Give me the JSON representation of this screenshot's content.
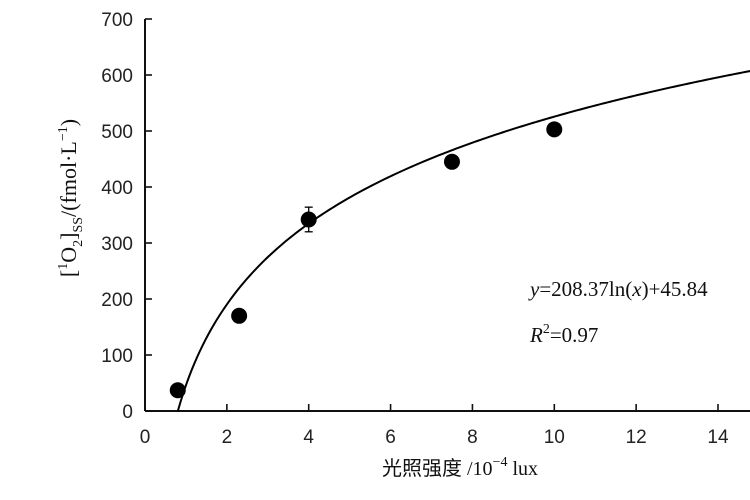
{
  "chart_data": {
    "type": "scatter",
    "xlabel_cjk": "光照强度",
    "xlabel_unit": " /10",
    "xlabel_exp": "−4",
    "xlabel_tail": " lux",
    "ylabel": {
      "open": "[",
      "sup1": "1",
      "o": "O",
      "sub2": "2",
      "close": "]",
      "ss": "SS",
      "rest": "/(fmol·L",
      "supminus": "−1",
      "end": ")"
    },
    "xlim": [
      0,
      15.5
    ],
    "ylim": [
      0,
      700
    ],
    "xticks": [
      "0",
      "2",
      "4",
      "6",
      "8",
      "10",
      "12",
      "14"
    ],
    "xtick_values": [
      0,
      2,
      4,
      6,
      8,
      10,
      12,
      14
    ],
    "yticks": [
      "0",
      "100",
      "200",
      "300",
      "400",
      "500",
      "600",
      "700"
    ],
    "ytick_values": [
      0,
      100,
      200,
      300,
      400,
      500,
      600,
      700
    ],
    "points": [
      {
        "x": 0.8,
        "y": 37,
        "err": 0
      },
      {
        "x": 2.3,
        "y": 170,
        "err": 0
      },
      {
        "x": 4.0,
        "y": 342,
        "err": 22
      },
      {
        "x": 7.5,
        "y": 445,
        "err": 0
      },
      {
        "x": 10.0,
        "y": 503,
        "err": 8
      }
    ],
    "fit": {
      "a": 208.37,
      "b": 45.84,
      "model": "log"
    },
    "equation": {
      "y": "y",
      "eq1": "=208.37ln(",
      "x": "x",
      "eq2": ")+45.84",
      "r": "R",
      "rsup": "2",
      "rval": "=0.97"
    }
  }
}
